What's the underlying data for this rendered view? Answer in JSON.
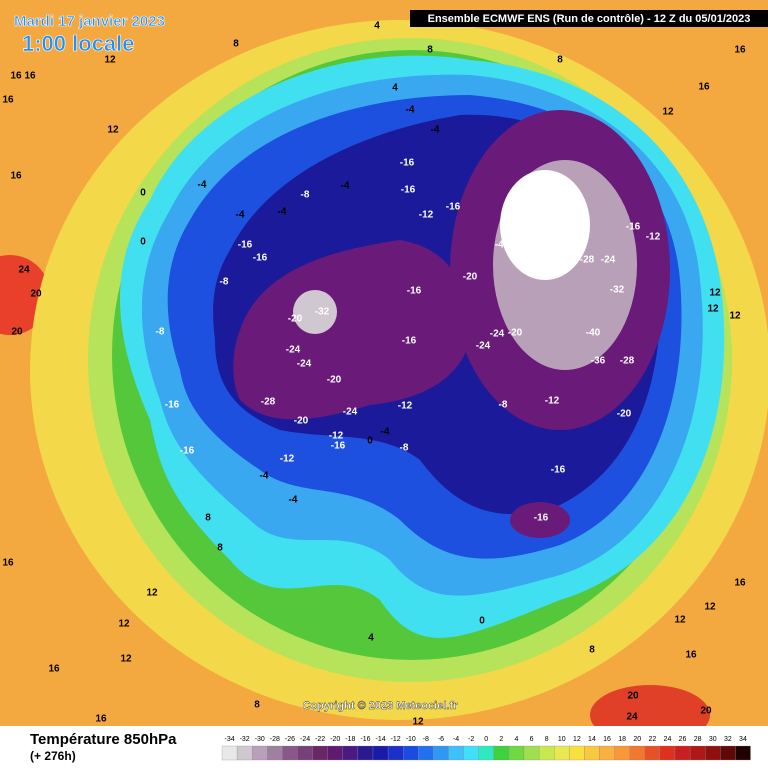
{
  "header": {
    "title_date": "Mardi 17 janvier 2023",
    "title_time": "1:00 locale",
    "run_info": "Ensemble ECMWF ENS  (Run de contrôle)  -  12 Z du 05/01/2023"
  },
  "map": {
    "copyright": "Copyright © 2023 Meteociel.fr",
    "contour_labels": [
      24,
      20,
      20,
      16,
      16,
      12,
      0,
      -4,
      0,
      -4,
      -4,
      -8,
      -4,
      -4,
      -4,
      -16,
      -16,
      -12,
      -16,
      -28,
      -40,
      -40,
      -36,
      -28,
      -24,
      -32,
      -40,
      -36,
      -28,
      -16,
      -12,
      -16,
      -16,
      -8,
      -8,
      -20,
      -32,
      -24,
      -24,
      -28,
      -20,
      -24,
      -20,
      -16,
      -16,
      -20,
      -24,
      -20,
      -24,
      -12,
      -8,
      -12,
      -20,
      -16,
      -16,
      -12,
      -12,
      -16,
      0,
      -4,
      -8,
      -16,
      -16,
      -4,
      -4,
      8,
      8,
      16,
      12,
      12,
      12,
      16,
      16,
      8,
      12,
      4,
      0,
      8,
      12,
      12,
      16,
      16,
      20,
      24,
      20,
      12,
      12,
      12,
      12,
      16,
      16,
      8,
      4,
      4,
      8,
      8,
      12,
      16,
      16
    ]
  },
  "legend": {
    "title": "Température 850hPa",
    "lead_time": "(+ 276h)",
    "ticks": [
      -34,
      -32,
      -30,
      -28,
      -26,
      -24,
      -22,
      -20,
      -18,
      -16,
      -14,
      -12,
      -10,
      -8,
      -6,
      -4,
      -2,
      0,
      2,
      4,
      6,
      8,
      10,
      12,
      14,
      16,
      18,
      20,
      22,
      24,
      26,
      28,
      30,
      32,
      34
    ],
    "colors": [
      "#e8e8e8",
      "#d0c8d0",
      "#b8a0b8",
      "#a080a0",
      "#885888",
      "#784078",
      "#682868",
      "#601a70",
      "#4a1a80",
      "#2a1a90",
      "#1a1aa8",
      "#1a30c8",
      "#1a4ae0",
      "#2070f0",
      "#3098f0",
      "#40c0f8",
      "#40e0f8",
      "#30e8c0",
      "#40d040",
      "#70d840",
      "#a0e050",
      "#c8e850",
      "#e8e850",
      "#f8e040",
      "#f8c840",
      "#f8b040",
      "#f89838",
      "#f07830",
      "#e85028",
      "#e03020",
      "#c82020",
      "#b01818",
      "#901010",
      "#600808",
      "#200000"
    ]
  }
}
